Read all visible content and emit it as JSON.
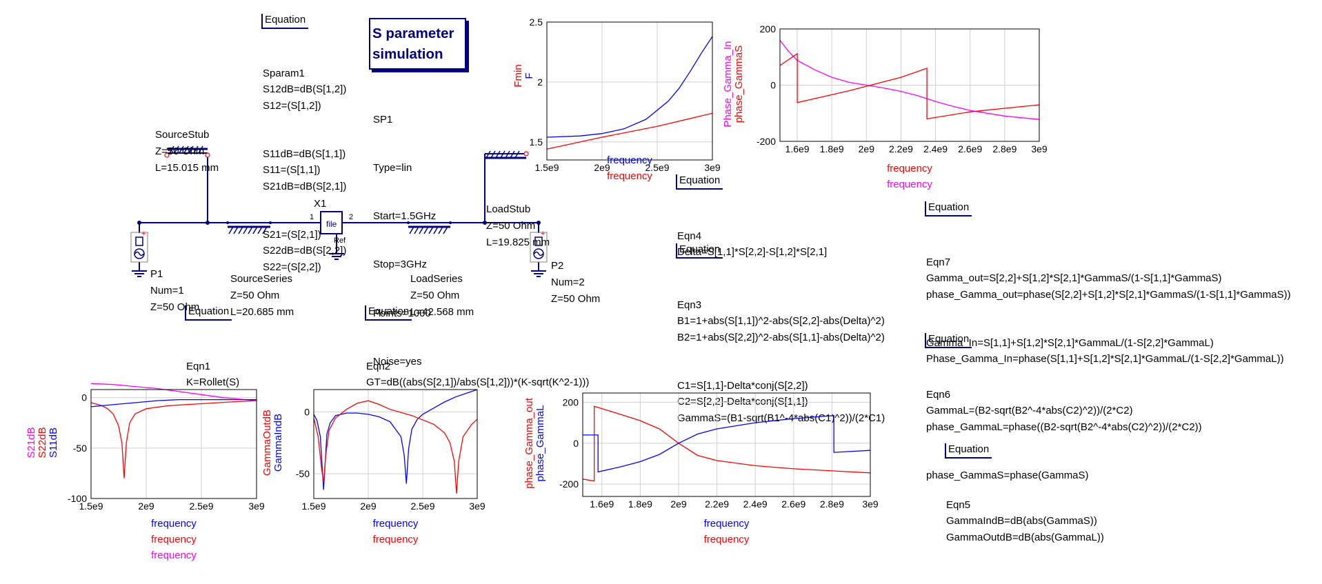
{
  "title": {
    "line1": "S parameter",
    "line2": "simulation"
  },
  "sparam_block": {
    "lines": [
      "SP1",
      "Type=lin",
      "Start=1.5GHz",
      "Stop=3GHz",
      "Points=1000",
      "Noise=yes"
    ]
  },
  "equations": [
    {
      "header": "Equation",
      "lines": [
        "Sparam1",
        "S12dB=dB(S[1,2])",
        "S12=(S[1,2])",
        "S11dB=dB(S[1,1])",
        "S11=(S[1,1])",
        "S21dB=dB(S[2,1])",
        "S21=(S[2,1])",
        "S22dB=dB(S[2,2])",
        "S22=(S[2,2])"
      ]
    },
    {
      "header": "Equation",
      "lines": [
        "Eqn1",
        "K=Rollet(S)"
      ]
    },
    {
      "header": "Equation",
      "lines": [
        "Eqn2",
        "GT=dB((abs(S[2,1])/abs(S[1,2]))*(K-sqrt(K^2-1)))"
      ]
    },
    {
      "header": "Equation",
      "lines": [
        "Eqn4",
        "Delta=S[1,1]*S[2,2]-S[1,2]*S[2,1]"
      ]
    },
    {
      "header": "Equation",
      "lines": [
        "Eqn3",
        "B1=1+abs(S[1,1])^2-abs(S[2,2]-abs(Delta)^2)",
        "B2=1+abs(S[2,2])^2-abs(S[1,1]-abs(Delta)^2)",
        "C1=S[1,1]-Delta*conj(S[2,2])",
        "C2=S[2,2]-Delta*conj(S[1,1])",
        "GammaS=(B1-sqrt(B1^-4*abs(C1)^2))/(2*C1)"
      ]
    },
    {
      "header": "Equation",
      "lines": [
        "Eqn7",
        "Gamma_out=S[2,2]+S[1,2]*S[2,1]*GammaS/(1-S[1,1]*GammaS)",
        "phase_Gamma_out=phase(S[2,2]+S[1,2]*S[2,1]*GammaS/(1-S[1,1]*GammaS))",
        "Gamma_In=S[1,1]+S[1,2]*S[2,1]*GammaL/(1-S[2,2]*GammaL)",
        "Phase_Gamma_In=phase(S[1,1]+S[1,2]*S[2,1]*GammaL/(1-S[2,2]*GammaL))"
      ]
    },
    {
      "header": "Equation",
      "lines": [
        "Eqn6",
        "GammaL=(B2-sqrt(B2^-4*abs(C2)^2))/(2*C2)",
        "phase_GammaL=phase((B2-sqrt(B2^-4*abs(C2)^2))/(2*C2))",
        "phase_GammaS=phase(GammaS)"
      ]
    },
    {
      "header": "Equation",
      "lines": [
        "Eqn5",
        "GammaIndB=dB(abs(GammaS))",
        "GammaOutdB=dB(abs(GammaL))"
      ]
    }
  ],
  "components": [
    {
      "lines": [
        "SourceStub",
        "Z=50 Ohm",
        "L=15.015 mm"
      ]
    },
    {
      "lines": [
        "LoadStub",
        "Z=50 Ohm",
        "L=19.825 mm"
      ]
    },
    {
      "lines": [
        "SourceSeries",
        "Z=50 Ohm",
        "L=20.685 mm"
      ]
    },
    {
      "lines": [
        "LoadSeries",
        "Z=50 Ohm",
        "L=42.568 mm"
      ]
    },
    {
      "lines": [
        "P1",
        "Num=1",
        "Z=50 Ohm"
      ]
    },
    {
      "lines": [
        "P2",
        "Num=2",
        "Z=50 Ohm"
      ]
    }
  ],
  "twoport": {
    "name": "X1",
    "label": "file",
    "ref": "Ref",
    "pin1": "1",
    "pin2": "2"
  },
  "colors": {
    "blue": "#0000ff",
    "red": "#ff0000",
    "magenta": "#ff00ff",
    "navy": "#00007f",
    "grid": "#cfcfcf"
  },
  "chart_data": [
    {
      "type": "line",
      "ylim": [
        1.35,
        2.5
      ],
      "xlim": [
        1500000000,
        3000000000
      ],
      "xticks": [
        1500000000,
        2000000000,
        2500000000,
        3000000000
      ],
      "xtick_labels": [
        "1.5e9",
        "2e9",
        "2.5e9",
        "3e9"
      ],
      "yticks": [
        1.5,
        2,
        2.5
      ],
      "ytick_labels": [
        "1.5",
        "2",
        "2.5"
      ],
      "xlabels": [
        {
          "text": "frequency",
          "color": "#0000ff"
        },
        {
          "text": "frequency",
          "color": "#ff0000"
        }
      ],
      "ylabels": [
        {
          "text": "Fmin",
          "color": "#ff0000"
        },
        {
          "text": "F",
          "color": "#0000ff"
        }
      ],
      "series": [
        {
          "name": "F",
          "color": "#0000ff",
          "x": [
            1500000000,
            1800000000,
            2000000000,
            2200000000,
            2400000000,
            2600000000,
            2700000000,
            2800000000,
            2900000000,
            3000000000
          ],
          "y": [
            1.54,
            1.55,
            1.57,
            1.61,
            1.69,
            1.84,
            1.95,
            2.09,
            2.24,
            2.38
          ]
        },
        {
          "name": "Fmin",
          "color": "#ff0000",
          "x": [
            1500000000,
            2000000000,
            2500000000,
            3000000000
          ],
          "y": [
            1.44,
            1.54,
            1.63,
            1.74
          ]
        }
      ]
    },
    {
      "type": "line",
      "ylim": [
        -200,
        200
      ],
      "xlim": [
        1500000000,
        3000000000
      ],
      "xticks": [
        1600000000,
        1800000000,
        2000000000,
        2200000000,
        2400000000,
        2600000000,
        2800000000,
        3000000000
      ],
      "xtick_labels": [
        "1.6e9",
        "1.8e9",
        "2e9",
        "2.2e9",
        "2.4e9",
        "2.6e9",
        "2.8e9",
        "3e9"
      ],
      "yticks": [
        -200,
        0,
        200
      ],
      "ytick_labels": [
        "-200",
        "0",
        "200"
      ],
      "xlabels": [
        {
          "text": "frequency",
          "color": "#ff0000"
        },
        {
          "text": "frequency",
          "color": "#ff00ff"
        }
      ],
      "ylabels": [
        {
          "text": "Phase_Gamma_In",
          "color": "#ff00ff"
        },
        {
          "text": "phase_GammaS",
          "color": "#ff0000"
        }
      ],
      "series": [
        {
          "name": "Phase_Gamma_In",
          "color": "#ff00ff",
          "x": [
            1500000000,
            1550000000,
            1600000000,
            1700000000,
            1800000000,
            1900000000,
            2000000000,
            2100000000,
            2200000000,
            2300000000,
            2400000000,
            2500000000,
            2600000000,
            2700000000,
            2800000000,
            2900000000,
            3000000000
          ],
          "y": [
            160,
            120,
            88,
            55,
            28,
            10,
            0,
            -10,
            -22,
            -38,
            -58,
            -75,
            -90,
            -100,
            -110,
            -116,
            -122
          ]
        },
        {
          "name": "phase_GammaS",
          "color": "#ff0000",
          "x": [
            1500000000,
            1600000000,
            1600000000,
            1900000000,
            2200000000,
            2350000000,
            2350000000,
            2600000000,
            3000000000
          ],
          "y": [
            70,
            112,
            -62,
            -20,
            28,
            60,
            -120,
            -95,
            -70
          ]
        }
      ]
    },
    {
      "type": "line",
      "ylim": [
        -100,
        8
      ],
      "xlim": [
        1500000000,
        3000000000
      ],
      "xticks": [
        1500000000,
        2000000000,
        2500000000,
        3000000000
      ],
      "xtick_labels": [
        "1.5e9",
        "2e9",
        "2.5e9",
        "3e9"
      ],
      "yticks": [
        -100,
        -50,
        0
      ],
      "ytick_labels": [
        "-100",
        "-50",
        "0"
      ],
      "xlabels": [
        {
          "text": "frequency",
          "color": "#0000ff"
        },
        {
          "text": "frequency",
          "color": "#ff0000"
        },
        {
          "text": "frequency",
          "color": "#ff00ff"
        }
      ],
      "ylabels": [
        {
          "text": "S21dB",
          "color": "#ff00ff"
        },
        {
          "text": "S22dB",
          "color": "#ff0000"
        },
        {
          "text": "S11dB",
          "color": "#0000ff"
        }
      ],
      "series": [
        {
          "name": "S21dB",
          "color": "#ff00ff",
          "x": [
            1500000000,
            1700000000,
            1900000000,
            2100000000,
            2300000000,
            2500000000,
            2700000000,
            2900000000,
            3000000000
          ],
          "y": [
            14,
            13,
            11,
            9,
            6,
            3,
            0,
            -2,
            -3
          ]
        },
        {
          "name": "S22dB",
          "color": "#ff0000",
          "x": [
            1500000000,
            1600000000,
            1650000000,
            1700000000,
            1750000000,
            1780000000,
            1800000000,
            1820000000,
            1850000000,
            1900000000,
            2000000000,
            2200000000,
            2500000000,
            2800000000,
            3000000000
          ],
          "y": [
            -5,
            -8,
            -11,
            -16,
            -28,
            -45,
            -80,
            -45,
            -25,
            -16,
            -11,
            -8,
            -6,
            -4,
            -3
          ]
        },
        {
          "name": "S11dB",
          "color": "#0000ff",
          "x": [
            1500000000,
            1700000000,
            1900000000,
            2100000000,
            2300000000,
            2500000000,
            2700000000,
            2900000000,
            3000000000
          ],
          "y": [
            -9,
            -7,
            -5,
            -3,
            -2,
            -2,
            -2,
            -2,
            -2
          ]
        }
      ]
    },
    {
      "type": "line",
      "ylim": [
        -70,
        18
      ],
      "xlim": [
        1500000000,
        3000000000
      ],
      "xticks": [
        1500000000,
        2000000000,
        2500000000,
        3000000000
      ],
      "xtick_labels": [
        "1.5e9",
        "2e9",
        "2.5e9",
        "3e9"
      ],
      "yticks": [
        -50,
        0
      ],
      "ytick_labels": [
        "-50",
        "0"
      ],
      "xlabels": [
        {
          "text": "frequency",
          "color": "#0000ff"
        },
        {
          "text": "frequency",
          "color": "#ff0000"
        }
      ],
      "ylabels": [
        {
          "text": "GammaOutdB",
          "color": "#ff0000"
        },
        {
          "text": "GammaIndB",
          "color": "#0000ff"
        }
      ],
      "series": [
        {
          "name": "GammaIndB",
          "color": "#0000ff",
          "x": [
            1500000000,
            1530000000,
            1560000000,
            1590000000,
            1620000000,
            1650000000,
            1700000000,
            1800000000,
            1900000000,
            2000000000,
            2100000000,
            2200000000,
            2300000000,
            2330000000,
            2350000000,
            2370000000,
            2400000000,
            2450000000,
            2500000000,
            2600000000,
            2700000000,
            2800000000,
            2900000000,
            3000000000
          ],
          "y": [
            -2,
            -7,
            -20,
            -63,
            -18,
            -9,
            -3,
            -1,
            -1,
            -2,
            -4,
            -8,
            -20,
            -35,
            -58,
            -30,
            -14,
            -6,
            -2,
            3,
            8,
            12,
            15,
            18
          ]
        },
        {
          "name": "GammaOutdB",
          "color": "#ff0000",
          "x": [
            1500000000,
            1540000000,
            1570000000,
            1590000000,
            1610000000,
            1640000000,
            1700000000,
            1800000000,
            1900000000,
            2000000000,
            2100000000,
            2200000000,
            2400000000,
            2600000000,
            2700000000,
            2750000000,
            2790000000,
            2810000000,
            2830000000,
            2870000000,
            2950000000,
            3000000000
          ],
          "y": [
            -5,
            -20,
            -45,
            -57,
            -35,
            -15,
            -5,
            2,
            7,
            9,
            6,
            2,
            -3,
            -10,
            -17,
            -25,
            -40,
            -66,
            -40,
            -20,
            -10,
            -6
          ]
        }
      ]
    },
    {
      "type": "line",
      "ylim": [
        -260,
        245
      ],
      "xlim": [
        1500000000,
        3000000000
      ],
      "xticks": [
        1600000000,
        1800000000,
        2000000000,
        2200000000,
        2400000000,
        2600000000,
        2800000000,
        3000000000
      ],
      "xtick_labels": [
        "1.6e9",
        "1.8e9",
        "2e9",
        "2.2e9",
        "2.4e9",
        "2.6e9",
        "2.8e9",
        "3e9"
      ],
      "yticks": [
        -200,
        0,
        200
      ],
      "ytick_labels": [
        "-200",
        "0",
        "200"
      ],
      "xlabels": [
        {
          "text": "frequency",
          "color": "#0000ff"
        },
        {
          "text": "frequency",
          "color": "#ff0000"
        }
      ],
      "ylabels": [
        {
          "text": "phase_Gamma_out",
          "color": "#ff0000"
        },
        {
          "text": "phase_GammaL",
          "color": "#0000ff"
        }
      ],
      "series": [
        {
          "name": "phase_Gamma_out",
          "color": "#ff0000",
          "x": [
            1500000000,
            1560000000,
            1560000000,
            1700000000,
            1800000000,
            1900000000,
            2000000000,
            2100000000,
            2200000000,
            2400000000,
            2600000000,
            2800000000,
            3000000000
          ],
          "y": [
            -175,
            -185,
            180,
            140,
            110,
            70,
            0,
            -60,
            -85,
            -110,
            -125,
            -135,
            -145
          ]
        },
        {
          "name": "phase_GammaL",
          "color": "#0000ff",
          "x": [
            1500000000,
            1580000000,
            1580000000,
            1700000000,
            1800000000,
            1900000000,
            2000000000,
            2100000000,
            2200000000,
            2400000000,
            2600000000,
            2810000000,
            2810000000,
            3000000000
          ],
          "y": [
            40,
            40,
            -140,
            -115,
            -90,
            -55,
            0,
            45,
            70,
            100,
            120,
            135,
            -45,
            -35
          ]
        }
      ]
    }
  ]
}
